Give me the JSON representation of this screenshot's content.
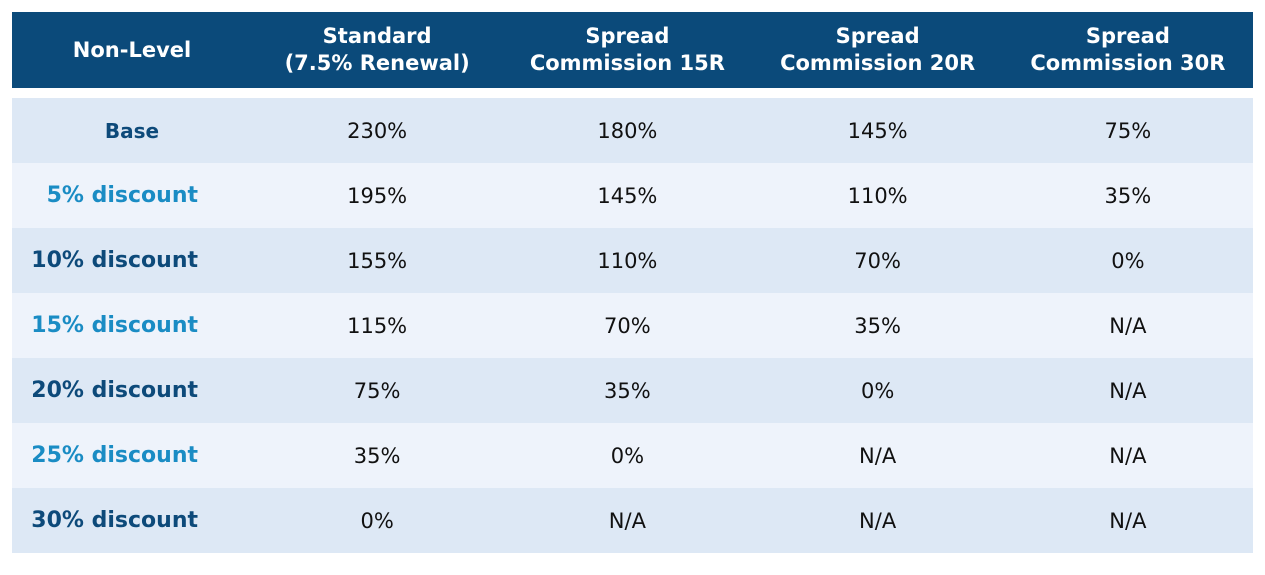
{
  "table": {
    "header": [
      "Non-Level",
      "Standard\n(7.5% Renewal)",
      "Spread\nCommission 15R",
      "Spread\nCommission 20R",
      "Spread\nCommission 30R"
    ],
    "rows": [
      [
        "Base",
        "230%",
        "180%",
        "145%",
        "75%"
      ],
      [
        "5% discount",
        "195%",
        "145%",
        "110%",
        "35%"
      ],
      [
        "10% discount",
        "155%",
        "110%",
        "70%",
        "0%"
      ],
      [
        "15% discount",
        "115%",
        "70%",
        "35%",
        "N/A"
      ],
      [
        "20% discount",
        "75%",
        "35%",
        "0%",
        "N/A"
      ],
      [
        "25% discount",
        "35%",
        "0%",
        "N/A",
        "N/A"
      ],
      [
        "30% discount",
        "0%",
        "N/A",
        "N/A",
        "N/A"
      ]
    ]
  }
}
